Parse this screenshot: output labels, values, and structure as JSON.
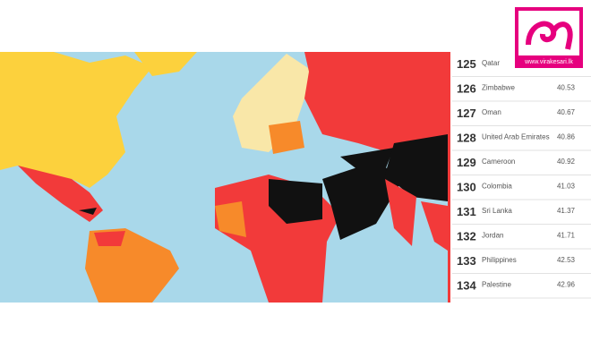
{
  "logo": {
    "url": "www.virakesari.lk"
  },
  "ranking": {
    "rows": [
      {
        "rank": "125",
        "country": "Qatar"
      },
      {
        "rank": "126",
        "country": "Zimbabwe",
        "score": "40.53"
      },
      {
        "rank": "127",
        "country": "Oman",
        "score": "40.67"
      },
      {
        "rank": "128",
        "country": "United Arab Emirates",
        "score": "40.86"
      },
      {
        "rank": "129",
        "country": "Cameroon",
        "score": "40.92"
      },
      {
        "rank": "130",
        "country": "Colombia",
        "score": "41.03"
      },
      {
        "rank": "131",
        "country": "Sri Lanka",
        "score": "41.37"
      },
      {
        "rank": "132",
        "country": "Jordan",
        "score": "41.71"
      },
      {
        "rank": "133",
        "country": "Philippines",
        "score": "42.53"
      },
      {
        "rank": "134",
        "country": "Palestine",
        "score": "42.96"
      }
    ]
  }
}
